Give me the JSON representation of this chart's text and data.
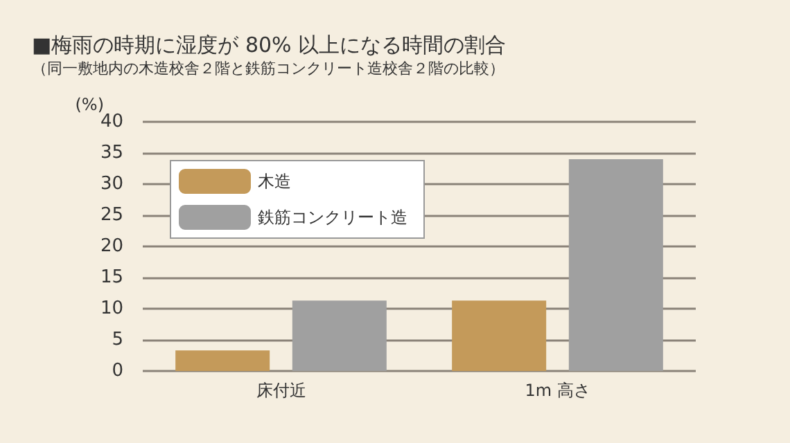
{
  "chart_data": {
    "type": "bar",
    "title": "■梅雨の時期に湿度が 80% 以上になる時間の割合",
    "subtitle": "（同一敷地内の木造校舎２階と鉄筋コンクリート造校舎２階の比較）",
    "ylabel": "(%)",
    "categories": [
      "床付近",
      "1m 高さ"
    ],
    "series": [
      {
        "name": "木造",
        "color": "#c49a5a",
        "values": [
          3.3,
          11.3
        ]
      },
      {
        "name": "鉄筋コンクリート造",
        "color": "#a0a0a0",
        "values": [
          11.3,
          34.0
        ]
      }
    ],
    "ylim": [
      0,
      40
    ],
    "yticks": [
      0,
      5,
      10,
      15,
      20,
      25,
      30,
      35,
      40
    ],
    "grid": "y",
    "legend": "top left"
  }
}
